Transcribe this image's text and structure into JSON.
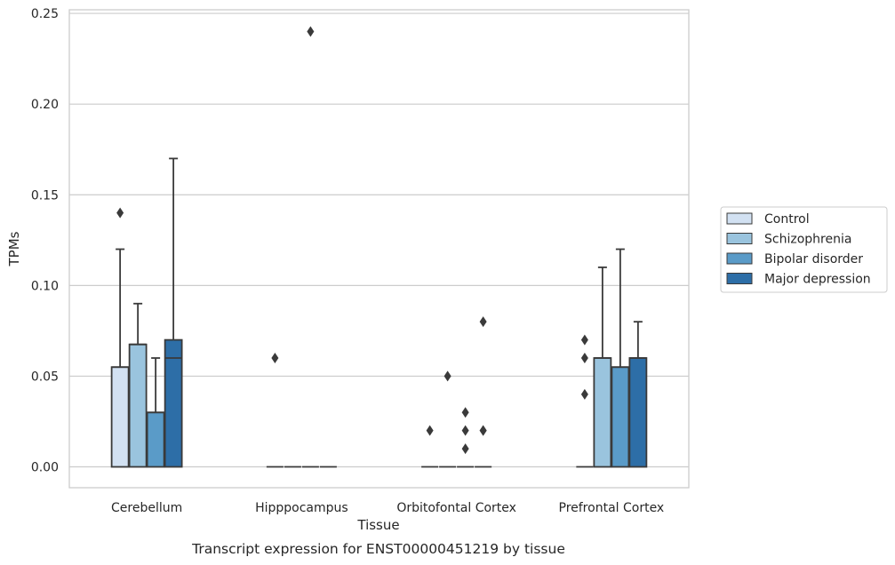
{
  "caption": "Transcript expression for ENST00000451219 by tissue",
  "chart_data": {
    "type": "box",
    "xlabel": "Tissue",
    "ylabel": "TPMs",
    "ylim": [
      -0.0115,
      0.252
    ],
    "yticks": [
      0.0,
      0.05,
      0.1,
      0.15,
      0.2,
      0.25
    ],
    "ytick_labels": [
      "0.00",
      "0.05",
      "0.10",
      "0.15",
      "0.20",
      "0.25"
    ],
    "grid": "horizontal",
    "legend_position": "right",
    "categories": [
      "Cerebellum",
      "Hipppocampus",
      "Orbitofontal Cortex",
      "Prefrontal Cortex"
    ],
    "series": [
      {
        "name": "Control",
        "color": "#d2e1f2",
        "boxes": [
          {
            "q1": 0.0,
            "median": 0.055,
            "q3": 0.055,
            "whisker_low": 0.0,
            "whisker_high": 0.12,
            "outliers": [
              0.14
            ]
          },
          {
            "q1": 0.0,
            "median": 0.0,
            "q3": 0.0,
            "whisker_low": 0.0,
            "whisker_high": 0.0,
            "outliers": [
              0.06
            ]
          },
          {
            "q1": 0.0,
            "median": 0.0,
            "q3": 0.0,
            "whisker_low": 0.0,
            "whisker_high": 0.0,
            "outliers": [
              0.02
            ]
          },
          {
            "q1": 0.0,
            "median": 0.0,
            "q3": 0.0,
            "whisker_low": 0.0,
            "whisker_high": 0.0,
            "outliers": [
              0.04,
              0.06,
              0.07
            ]
          }
        ]
      },
      {
        "name": "Schizophrenia",
        "color": "#9ac4de",
        "boxes": [
          {
            "q1": 0.0,
            "median": 0.0675,
            "q3": 0.0675,
            "whisker_low": 0.0,
            "whisker_high": 0.09,
            "outliers": []
          },
          {
            "q1": 0.0,
            "median": 0.0,
            "q3": 0.0,
            "whisker_low": 0.0,
            "whisker_high": 0.0,
            "outliers": []
          },
          {
            "q1": 0.0,
            "median": 0.0,
            "q3": 0.0,
            "whisker_low": 0.0,
            "whisker_high": 0.0,
            "outliers": [
              0.05
            ]
          },
          {
            "q1": 0.0,
            "median": 0.06,
            "q3": 0.06,
            "whisker_low": 0.0,
            "whisker_high": 0.11,
            "outliers": []
          }
        ]
      },
      {
        "name": "Bipolar disorder",
        "color": "#5a9bc8",
        "boxes": [
          {
            "q1": 0.0,
            "median": 0.03,
            "q3": 0.03,
            "whisker_low": 0.0,
            "whisker_high": 0.06,
            "outliers": []
          },
          {
            "q1": 0.0,
            "median": 0.0,
            "q3": 0.0,
            "whisker_low": 0.0,
            "whisker_high": 0.0,
            "outliers": [
              0.24
            ]
          },
          {
            "q1": 0.0,
            "median": 0.0,
            "q3": 0.0,
            "whisker_low": 0.0,
            "whisker_high": 0.0,
            "outliers": [
              0.01,
              0.02,
              0.03
            ]
          },
          {
            "q1": 0.0,
            "median": 0.055,
            "q3": 0.055,
            "whisker_low": 0.0,
            "whisker_high": 0.12,
            "outliers": []
          }
        ]
      },
      {
        "name": "Major depression",
        "color": "#2d6ea7",
        "boxes": [
          {
            "q1": 0.0,
            "median": 0.06,
            "q3": 0.07,
            "whisker_low": 0.0,
            "whisker_high": 0.17,
            "outliers": []
          },
          {
            "q1": 0.0,
            "median": 0.0,
            "q3": 0.0,
            "whisker_low": 0.0,
            "whisker_high": 0.0,
            "outliers": []
          },
          {
            "q1": 0.0,
            "median": 0.0,
            "q3": 0.0,
            "whisker_low": 0.0,
            "whisker_high": 0.0,
            "outliers": [
              0.02,
              0.02,
              0.08
            ]
          },
          {
            "q1": 0.0,
            "median": 0.06,
            "q3": 0.06,
            "whisker_low": 0.0,
            "whisker_high": 0.08,
            "outliers": []
          }
        ]
      }
    ]
  }
}
